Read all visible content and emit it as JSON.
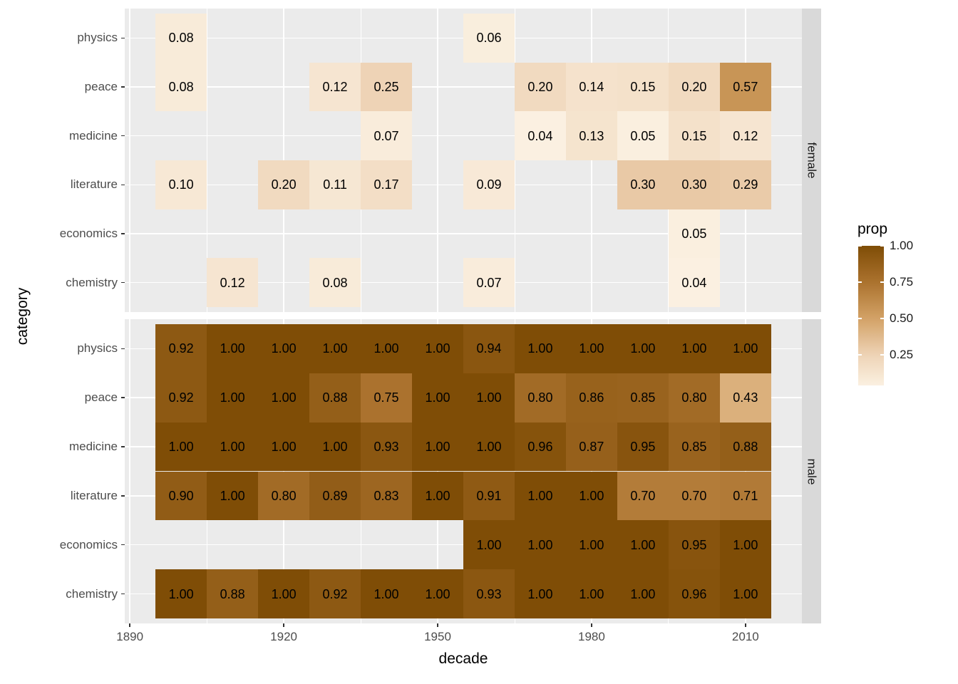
{
  "chart_data": {
    "type": "heatmap",
    "title": "",
    "xlabel": "decade",
    "ylabel": "category",
    "x_ticks": [
      1890,
      1920,
      1950,
      1980,
      2010
    ],
    "decades": [
      1900,
      1910,
      1920,
      1930,
      1940,
      1950,
      1960,
      1970,
      1980,
      1990,
      2000,
      2010
    ],
    "categories": [
      "physics",
      "peace",
      "medicine",
      "literature",
      "economics",
      "chemistry"
    ],
    "facets": [
      {
        "label": "female",
        "rows": [
          {
            "category": "physics",
            "values": [
              0.08,
              null,
              null,
              null,
              null,
              null,
              0.06,
              null,
              null,
              null,
              null,
              null
            ]
          },
          {
            "category": "peace",
            "values": [
              0.08,
              null,
              null,
              0.12,
              0.25,
              null,
              null,
              0.2,
              0.14,
              0.15,
              0.2,
              0.57
            ]
          },
          {
            "category": "medicine",
            "values": [
              null,
              null,
              null,
              null,
              0.07,
              null,
              null,
              0.04,
              0.13,
              0.05,
              0.15,
              0.12
            ]
          },
          {
            "category": "literature",
            "values": [
              0.1,
              null,
              0.2,
              0.11,
              0.17,
              null,
              0.09,
              null,
              null,
              0.3,
              0.3,
              0.29
            ]
          },
          {
            "category": "economics",
            "values": [
              null,
              null,
              null,
              null,
              null,
              null,
              null,
              null,
              null,
              null,
              0.05,
              null
            ]
          },
          {
            "category": "chemistry",
            "values": [
              null,
              0.12,
              null,
              0.08,
              null,
              null,
              0.07,
              null,
              null,
              null,
              0.04,
              null
            ]
          }
        ]
      },
      {
        "label": "male",
        "rows": [
          {
            "category": "physics",
            "values": [
              0.92,
              1.0,
              1.0,
              1.0,
              1.0,
              1.0,
              0.94,
              1.0,
              1.0,
              1.0,
              1.0,
              1.0
            ]
          },
          {
            "category": "peace",
            "values": [
              0.92,
              1.0,
              1.0,
              0.88,
              0.75,
              1.0,
              1.0,
              0.8,
              0.86,
              0.85,
              0.8,
              0.43
            ]
          },
          {
            "category": "medicine",
            "values": [
              1.0,
              1.0,
              1.0,
              1.0,
              0.93,
              1.0,
              1.0,
              0.96,
              0.87,
              0.95,
              0.85,
              0.88
            ]
          },
          {
            "category": "literature",
            "values": [
              0.9,
              1.0,
              0.8,
              0.89,
              0.83,
              1.0,
              0.91,
              1.0,
              1.0,
              0.7,
              0.7,
              0.71
            ]
          },
          {
            "category": "economics",
            "values": [
              null,
              null,
              null,
              null,
              null,
              null,
              1.0,
              1.0,
              1.0,
              1.0,
              0.95,
              1.0
            ]
          },
          {
            "category": "chemistry",
            "values": [
              1.0,
              0.88,
              1.0,
              0.92,
              1.0,
              1.0,
              0.93,
              1.0,
              1.0,
              1.0,
              0.96,
              1.0
            ]
          }
        ]
      }
    ],
    "legend": {
      "title": "prop",
      "ticks": [
        {
          "label": "1.00",
          "value": 1.0
        },
        {
          "label": "0.75",
          "value": 0.75
        },
        {
          "label": "0.50",
          "value": 0.5
        },
        {
          "label": "0.25",
          "value": 0.25
        }
      ],
      "bar_range": [
        0.04,
        1.0
      ]
    },
    "colors": {
      "panel_bg": "#EBEBEB",
      "strip_bg": "#D9D9D9",
      "grid": "#FFFFFF",
      "tick": "#333333",
      "axis_text": "#4D4D4D",
      "title_text": "#000000",
      "strip_text": "#1A1A1A",
      "tile_text": "#000000",
      "legend_text": "#1A1A1A",
      "scale_stops": [
        {
          "value": 0.0,
          "color": "#FDF6E9"
        },
        {
          "value": 0.25,
          "color": "#EED3B6"
        },
        {
          "value": 0.5,
          "color": "#D3A266"
        },
        {
          "value": 0.75,
          "color": "#AB722E"
        },
        {
          "value": 1.0,
          "color": "#7F4D06"
        }
      ]
    }
  }
}
